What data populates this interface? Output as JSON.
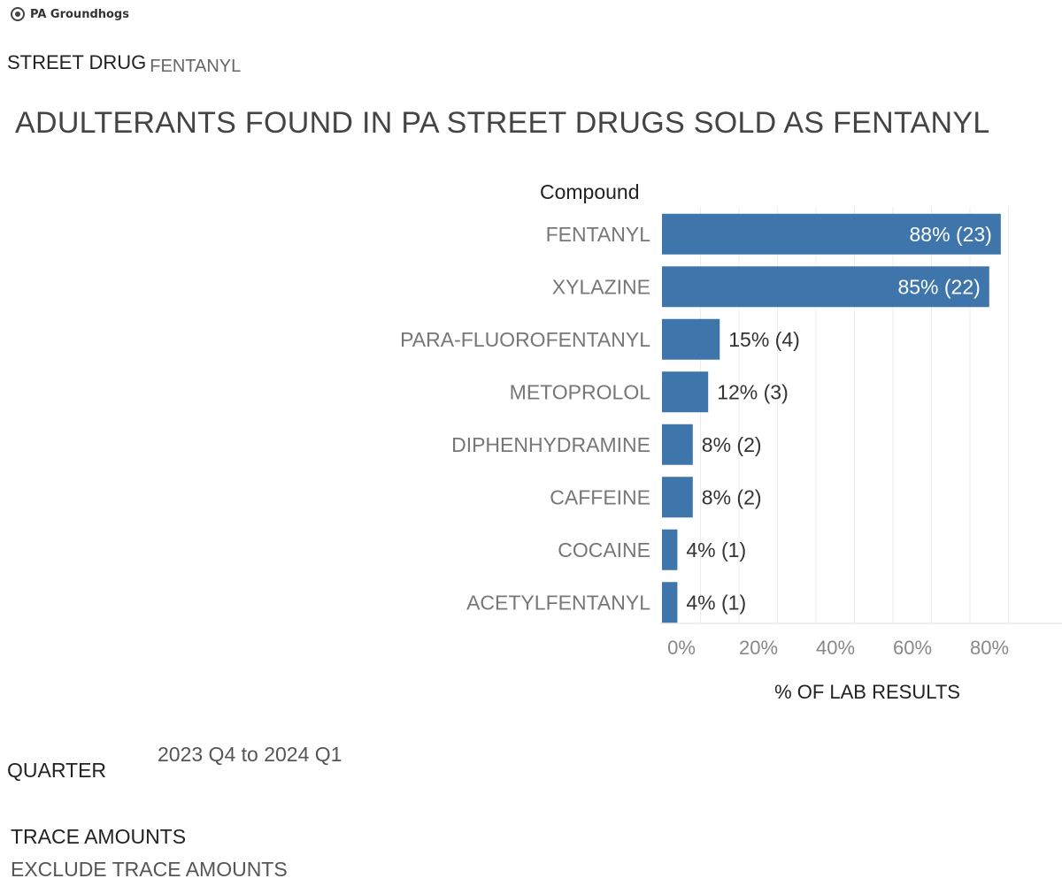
{
  "header": {
    "logo_text": "PA Groundhogs"
  },
  "filters": {
    "street_drug_label": "STREET DRUG",
    "street_drug_value": "FENTANYL",
    "quarter_label": "QUARTER",
    "quarter_value": "2023 Q4 to 2024 Q1",
    "trace_label": "TRACE AMOUNTS",
    "trace_value": "EXCLUDE TRACE AMOUNTS"
  },
  "chart_data": {
    "type": "bar",
    "orientation": "horizontal",
    "title": "ADULTERANTS FOUND IN PA STREET DRUGS SOLD AS FENTANYL",
    "category_header": "Compound",
    "xlabel": "% OF LAB RESULTS",
    "ylabel": "",
    "categories": [
      "FENTANYL",
      "XYLAZINE",
      "PARA-FLUOROFENTANYL",
      "METOPROLOL",
      "DIPHENHYDRAMINE",
      "CAFFEINE",
      "COCAINE",
      "ACETYLFENTANYL"
    ],
    "values": [
      88,
      85,
      15,
      12,
      8,
      8,
      4,
      4
    ],
    "counts": [
      23,
      22,
      4,
      3,
      2,
      2,
      1,
      1
    ],
    "data_labels": [
      "88% (23)",
      "85% (22)",
      "15% (4)",
      "12% (3)",
      "8% (2)",
      "8% (2)",
      "4% (1)",
      "4% (1)"
    ],
    "xlim": [
      0,
      97
    ],
    "x_ticks": [
      0,
      20,
      40,
      60,
      80
    ],
    "x_tick_labels": [
      "0%",
      "20%",
      "40%",
      "60%",
      "80%"
    ],
    "grid": true,
    "bar_color": "#3e76ab"
  }
}
